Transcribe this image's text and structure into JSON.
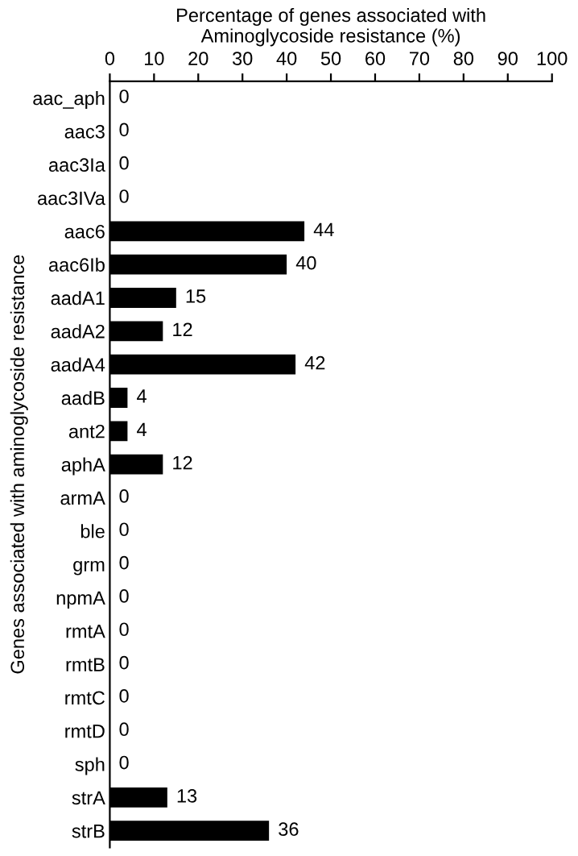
{
  "chart_data": {
    "type": "bar",
    "orientation": "horizontal",
    "xlabel": "Percentage of genes associated with\nAminoglycoside resistance (%)",
    "ylabel": "Genes associated with aminoglycoside resistance",
    "categories": [
      "aac_aph",
      "aac3",
      "aac3Ia",
      "aac3IVa",
      "aac6",
      "aac6Ib",
      "aadA1",
      "aadA2",
      "aadA4",
      "aadB",
      "ant2",
      "aphA",
      "armA",
      "ble",
      "grm",
      "npmA",
      "rmtA",
      "rmtB",
      "rmtC",
      "rmtD",
      "sph",
      "strA",
      "strB"
    ],
    "values": [
      0,
      0,
      0,
      0,
      44,
      40,
      15,
      12,
      42,
      4,
      4,
      12,
      0,
      0,
      0,
      0,
      0,
      0,
      0,
      0,
      0,
      13,
      36
    ],
    "color": "#000000",
    "xlim": [
      0,
      100
    ],
    "xticks": [
      0,
      10,
      20,
      30,
      40,
      50,
      60,
      70,
      80,
      90,
      100
    ],
    "data_labels": true,
    "grid": false
  }
}
